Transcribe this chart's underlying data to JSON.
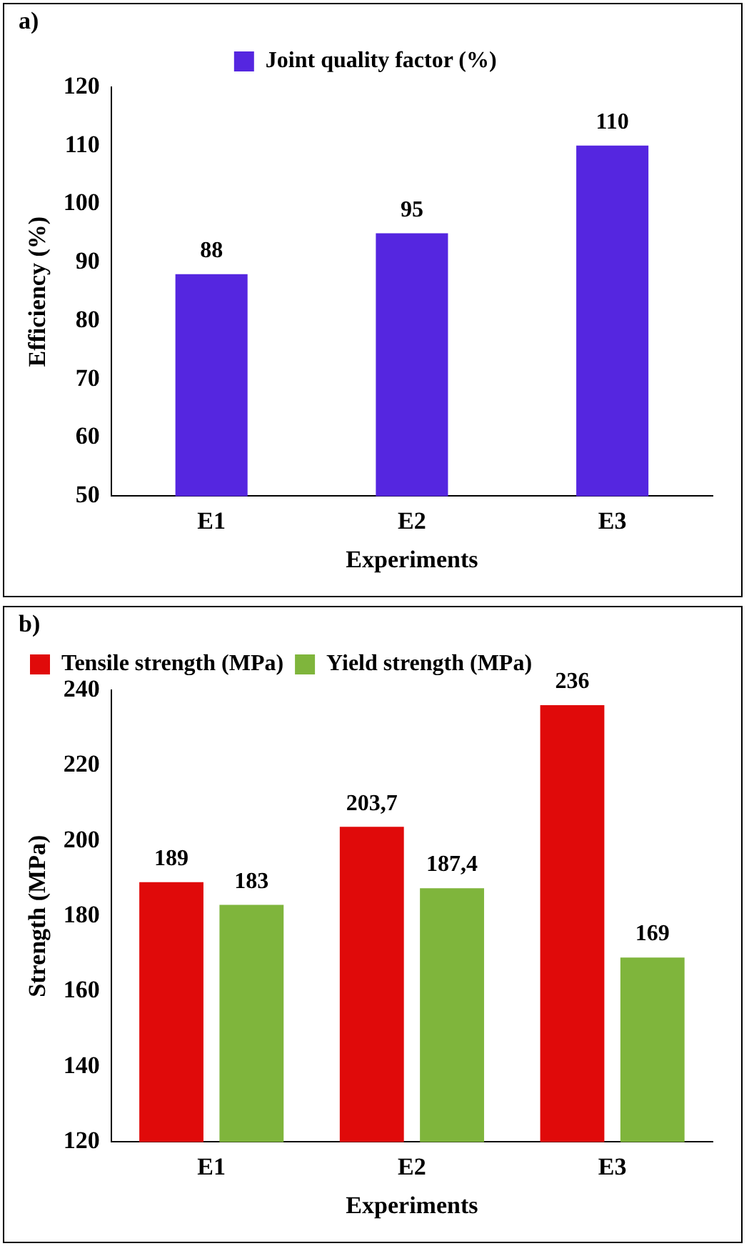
{
  "chart_data": [
    {
      "type": "bar",
      "annotations": [
        "a)"
      ],
      "xlabel": "Experiments",
      "ylabel": "Efficiency (%)",
      "categories": [
        "E1",
        "E2",
        "E3"
      ],
      "series": [
        {
          "name": "Joint quality factor (%)",
          "color": "#5526e0",
          "values": [
            88,
            95,
            110
          ]
        }
      ],
      "ylim": [
        50,
        120
      ],
      "yticks": [
        50,
        60,
        70,
        80,
        90,
        100,
        110,
        120
      ],
      "grid": false,
      "legend": "top",
      "data_labels": true
    },
    {
      "type": "bar",
      "annotations": [
        "b)"
      ],
      "xlabel": "Experiments",
      "ylabel": "Strength (MPa)",
      "categories": [
        "E1",
        "E2",
        "E3"
      ],
      "series": [
        {
          "name": "Tensile strength (MPa)",
          "color": "#e00a0a",
          "values": [
            189,
            203.7,
            236
          ],
          "value_labels": [
            "189",
            "203,7",
            "236"
          ]
        },
        {
          "name": "Yield strength (MPa)",
          "color": "#7fb53c",
          "values": [
            183,
            187.4,
            169
          ],
          "value_labels": [
            "183",
            "187,4",
            "169"
          ]
        }
      ],
      "ylim": [
        120,
        240
      ],
      "yticks": [
        120,
        140,
        160,
        180,
        200,
        220,
        240
      ],
      "grid": false,
      "legend": "top left"
    }
  ]
}
